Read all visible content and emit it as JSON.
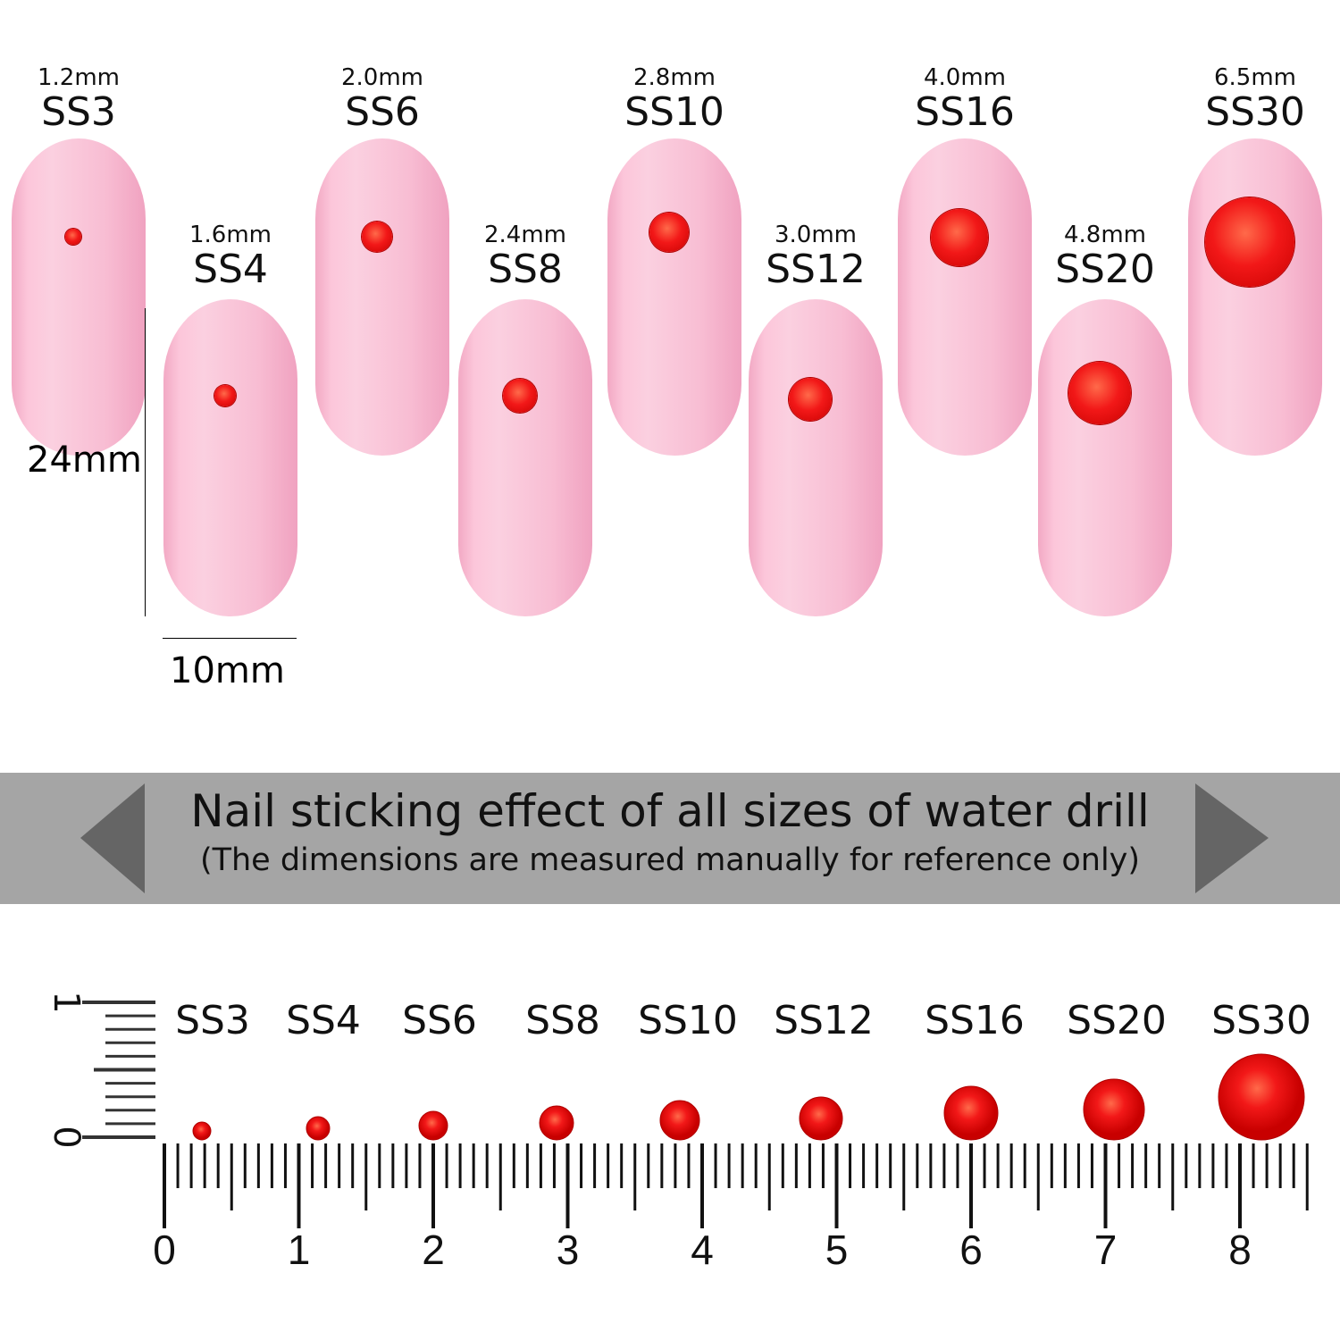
{
  "nails": [
    {
      "size": "SS3",
      "mm": "1.2mm",
      "row": "top"
    },
    {
      "size": "SS4",
      "mm": "1.6mm",
      "row": "bottom"
    },
    {
      "size": "SS6",
      "mm": "2.0mm",
      "row": "top"
    },
    {
      "size": "SS8",
      "mm": "2.4mm",
      "row": "bottom"
    },
    {
      "size": "SS10",
      "mm": "2.8mm",
      "row": "top"
    },
    {
      "size": "SS12",
      "mm": "3.0mm",
      "row": "bottom"
    },
    {
      "size": "SS16",
      "mm": "4.0mm",
      "row": "top"
    },
    {
      "size": "SS20",
      "mm": "4.8mm",
      "row": "bottom"
    },
    {
      "size": "SS30",
      "mm": "6.5mm",
      "row": "top"
    }
  ],
  "nail_dimensions": {
    "height": "24mm",
    "width": "10mm"
  },
  "banner": {
    "title": "Nail sticking effect of all sizes of water drill",
    "subtitle": "(The dimensions are measured manually for reference only)"
  },
  "ruler": {
    "labels": [
      "0",
      "1",
      "2",
      "3",
      "4",
      "5",
      "6",
      "7",
      "8"
    ],
    "vertical_labels": [
      "0",
      "1"
    ],
    "gem_labels": [
      "SS3",
      "SS4",
      "SS6",
      "SS8",
      "SS10",
      "SS12",
      "SS16",
      "SS20",
      "SS30"
    ]
  },
  "colors": {
    "nail": "#f8bdd3",
    "gem": "#f21818",
    "banner": "#a5a5a5"
  }
}
